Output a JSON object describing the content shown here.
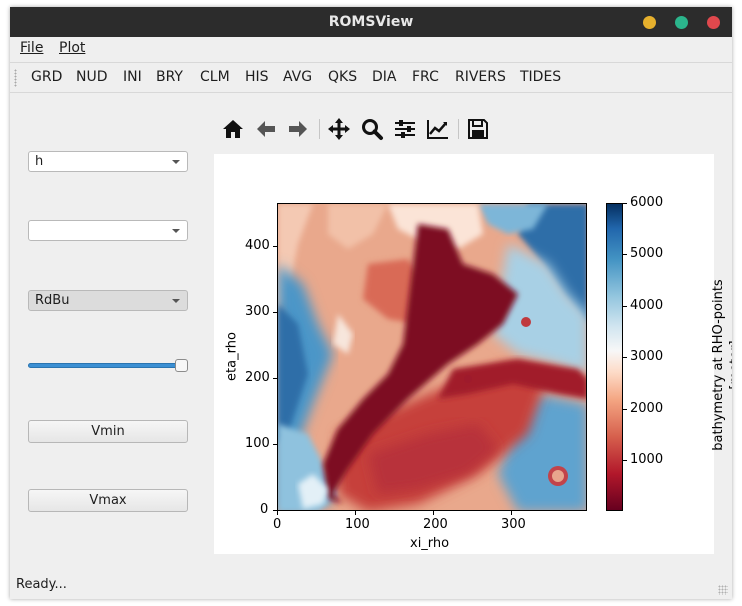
{
  "window": {
    "title": "ROMSView"
  },
  "window_buttons": [
    "#e6b02d",
    "#2bb58c",
    "#e0484d"
  ],
  "menu": {
    "file": "File",
    "plot": "Plot"
  },
  "toolbar": {
    "items": [
      "GRD",
      "NUD",
      "INI",
      "BRY",
      "CLM",
      "HIS",
      "AVG",
      "QKS",
      "DIA",
      "FRC",
      "RIVERS",
      "TIDES"
    ]
  },
  "controls": {
    "variable_select": "h",
    "time_select": "",
    "colormap_select": "RdBu",
    "slider_value": 1.0,
    "vmin_button": "Vmin",
    "vmax_button": "Vmax"
  },
  "nav_tools": [
    "home-icon",
    "back-arrow-icon",
    "forward-arrow-icon",
    "pan-icon",
    "zoom-icon",
    "subplot-config-icon",
    "axes-edit-icon",
    "save-icon"
  ],
  "plot": {
    "xlabel": "xi_rho",
    "ylabel": "eta_rho",
    "xticks": [
      "0",
      "100",
      "200",
      "300"
    ],
    "yticks": [
      "0",
      "100",
      "200",
      "300",
      "400"
    ],
    "colorbar_ticks": [
      "1000",
      "2000",
      "3000",
      "4000",
      "5000",
      "6000"
    ],
    "colorbar_label": "bathymetry at RHO-points\n[meter]"
  },
  "status": {
    "text": "Ready..."
  }
}
